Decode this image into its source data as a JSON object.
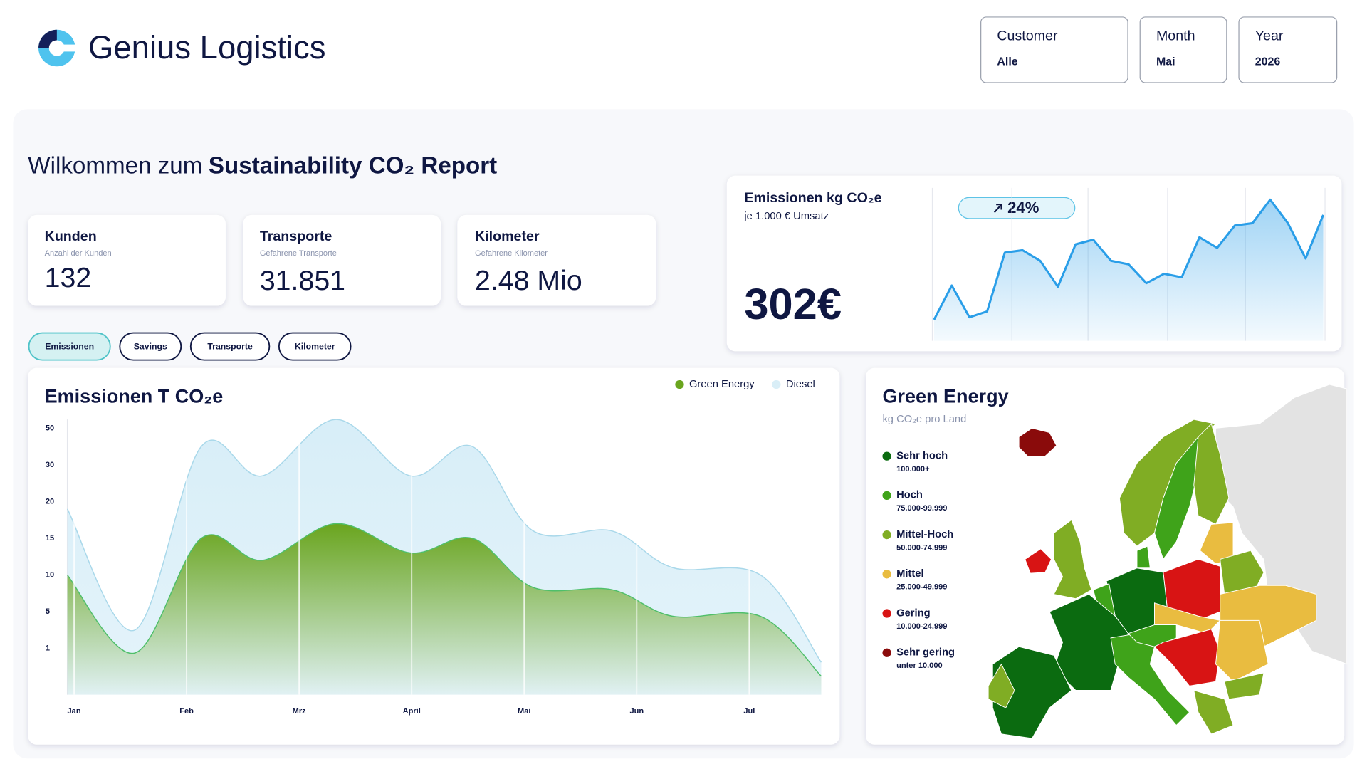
{
  "header": {
    "brand": "Genius Logistics"
  },
  "filters": [
    {
      "label": "Customer",
      "value": "Alle"
    },
    {
      "label": "Month",
      "value": "Mai"
    },
    {
      "label": "Year",
      "value": "2026"
    }
  ],
  "welcome": {
    "prefix": "Wilkommen zum",
    "title": "Sustainability CO₂ Report"
  },
  "kpis": [
    {
      "title": "Kunden",
      "subtitle": "Anzahl der Kunden",
      "value": "132"
    },
    {
      "title": "Transporte",
      "subtitle": "Gefahrene Transporte",
      "value": "31.851"
    },
    {
      "title": "Kilometer",
      "subtitle": "Gefahrene Kilometer",
      "value": "2.48 Mio"
    }
  ],
  "tabs": [
    "Emissionen",
    "Savings",
    "Transporte",
    "Kilometer"
  ],
  "chart_data": [
    {
      "type": "spark",
      "title": "Emissionen kg CO₂e",
      "subtitle": "je 1.000 € Umsatz",
      "kpi": "302€",
      "change": "24%",
      "color": "#2a9ee8",
      "values": [
        18,
        47,
        20,
        25,
        75,
        77,
        68,
        46,
        82,
        86,
        68,
        65,
        49,
        57,
        54,
        88,
        79,
        98,
        100,
        120,
        100,
        70,
        107
      ],
      "ylim": [
        0,
        130
      ]
    },
    {
      "type": "area",
      "title": "Emissionen T CO₂e",
      "x": [
        0.94,
        1.54,
        2.13,
        2.67,
        3.33,
        3.99,
        4.54,
        5.08,
        5.78,
        6.32,
        7.1,
        7.64
      ],
      "xlim": [
        0.94,
        7.64
      ],
      "xticks": [
        {
          "value": 1,
          "label": "Jan"
        },
        {
          "value": 2,
          "label": "Feb"
        },
        {
          "value": 3,
          "label": "Mrz"
        },
        {
          "value": 4,
          "label": "April"
        },
        {
          "value": 5,
          "label": "Mai"
        },
        {
          "value": 6,
          "label": "Jun"
        },
        {
          "value": 7,
          "label": "Jul"
        }
      ],
      "ylim": [
        0,
        55
      ],
      "yticks": [
        1,
        5,
        10,
        15,
        20,
        30,
        50
      ],
      "series": [
        {
          "name": "Green Energy",
          "color": "#6aa51e",
          "values": [
            10,
            0.9,
            15,
            12,
            17,
            13,
            15,
            8.3,
            8,
            4.5,
            4.5,
            0.4
          ]
        },
        {
          "name": "Diesel",
          "color": "#d3ecf7",
          "values": [
            19,
            3,
            40,
            27,
            55,
            27,
            40,
            16,
            16,
            11,
            10,
            0.7
          ]
        }
      ]
    }
  ],
  "map": {
    "title": "Green Energy",
    "subtitle": "kg CO₂e  pro Land",
    "legend": [
      {
        "name": "Sehr hoch",
        "range": "100.000+",
        "color": "#0b6b10"
      },
      {
        "name": "Hoch",
        "range": "75.000-99.999",
        "color": "#3fa31a"
      },
      {
        "name": "Mittel-Hoch",
        "range": "50.000-74.999",
        "color": "#80ad24"
      },
      {
        "name": "Mittel",
        "range": "25.000-49.999",
        "color": "#e9bc40"
      },
      {
        "name": "Gering",
        "range": "10.000-24.999",
        "color": "#d81414"
      },
      {
        "name": "Sehr gering",
        "range": "unter 10.000",
        "color": "#8a0b0b"
      }
    ]
  }
}
